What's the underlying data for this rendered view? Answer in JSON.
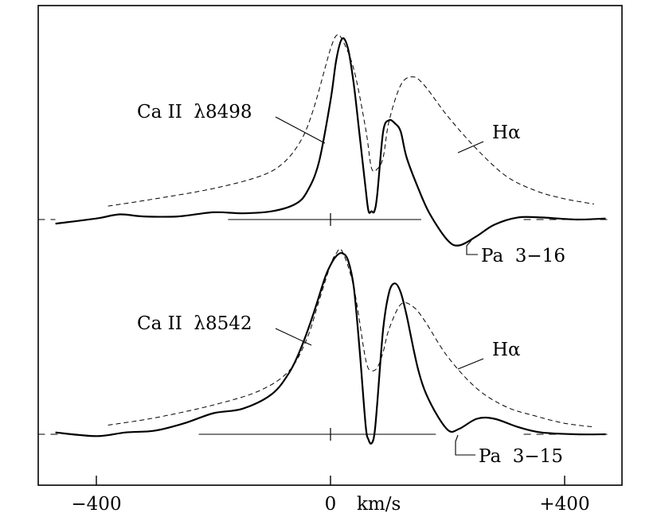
{
  "chart_data": {
    "type": "line",
    "xlabel": "km/s",
    "xlim": [
      -500,
      480
    ],
    "x_ticks": [
      {
        "value": -400,
        "label": "−400"
      },
      {
        "value": 0,
        "label": "0"
      },
      {
        "value": 400,
        "label": "+400"
      }
    ],
    "panels": [
      {
        "baseline": 0,
        "series": [
          {
            "name": "Ca II λ8498",
            "style": "solid",
            "x": [
              -470,
              -400,
              -360,
              -320,
              -260,
              -200,
              -150,
              -100,
              -60,
              -40,
              -20,
              0,
              10,
              20,
              30,
              40,
              50,
              60,
              65,
              70,
              75,
              80,
              90,
              100,
              110,
              120,
              130,
              150,
              170,
              200,
              220,
              250,
              280,
              320,
              360,
              420,
              470
            ],
            "y": [
              -0.04,
              0.01,
              0.05,
              0.03,
              0.03,
              0.07,
              0.06,
              0.08,
              0.15,
              0.27,
              0.55,
              1.15,
              1.55,
              1.75,
              1.65,
              1.3,
              0.8,
              0.3,
              0.08,
              0.08,
              0.08,
              0.25,
              0.85,
              0.96,
              0.93,
              0.85,
              0.6,
              0.3,
              0.05,
              -0.2,
              -0.25,
              -0.16,
              -0.05,
              0.02,
              0.02,
              0.0,
              0.01
            ]
          },
          {
            "name": "Hα",
            "style": "dashed",
            "x": [
              -380,
              -300,
              -200,
              -120,
              -80,
              -50,
              -30,
              -10,
              0,
              10,
              20,
              40,
              60,
              70,
              80,
              90,
              100,
              120,
              140,
              160,
              200,
              250,
              300,
              350,
              400,
              450
            ],
            "y": [
              0.13,
              0.2,
              0.3,
              0.42,
              0.55,
              0.77,
              1.05,
              1.45,
              1.65,
              1.78,
              1.74,
              1.45,
              0.88,
              0.5,
              0.49,
              0.6,
              0.95,
              1.3,
              1.38,
              1.3,
              1.0,
              0.68,
              0.42,
              0.28,
              0.2,
              0.15
            ]
          }
        ],
        "annotations": [
          {
            "text": "Ca II  λ8498"
          },
          {
            "text": "Hα"
          },
          {
            "text": "Pa  3−16"
          }
        ]
      },
      {
        "baseline": 0,
        "series": [
          {
            "name": "Ca II λ8542",
            "style": "solid",
            "x": [
              -470,
              -400,
              -350,
              -300,
              -250,
              -200,
              -150,
              -100,
              -70,
              -50,
              -30,
              -10,
              0,
              10,
              20,
              30,
              40,
              50,
              60,
              65,
              70,
              75,
              80,
              90,
              100,
              110,
              120,
              130,
              150,
              170,
              200,
              220,
              250,
              280,
              320,
              360,
              420,
              470
            ],
            "y": [
              0.02,
              -0.02,
              0.02,
              0.04,
              0.12,
              0.23,
              0.28,
              0.44,
              0.68,
              0.95,
              1.3,
              1.7,
              1.85,
              1.95,
              1.98,
              1.9,
              1.6,
              0.9,
              0.1,
              -0.06,
              -0.1,
              0.0,
              0.35,
              1.15,
              1.55,
              1.65,
              1.55,
              1.3,
              0.7,
              0.35,
              0.05,
              0.06,
              0.17,
              0.17,
              0.08,
              0.02,
              0.0,
              0.0
            ]
          },
          {
            "name": "Hα",
            "style": "dashed",
            "x": [
              -380,
              -300,
              -200,
              -120,
              -70,
              -40,
              -20,
              0,
              10,
              20,
              40,
              60,
              70,
              80,
              90,
              100,
              120,
              140,
              160,
              200,
              250,
              300,
              350,
              400,
              450
            ],
            "y": [
              0.1,
              0.18,
              0.32,
              0.48,
              0.7,
              1.05,
              1.45,
              1.85,
              1.98,
              2.0,
              1.6,
              0.82,
              0.7,
              0.73,
              0.9,
              1.15,
              1.42,
              1.4,
              1.25,
              0.85,
              0.5,
              0.3,
              0.2,
              0.12,
              0.08
            ]
          }
        ],
        "annotations": [
          {
            "text": "Ca II  λ8542"
          },
          {
            "text": "Hα"
          },
          {
            "text": "Pa  3−15"
          }
        ]
      }
    ]
  }
}
